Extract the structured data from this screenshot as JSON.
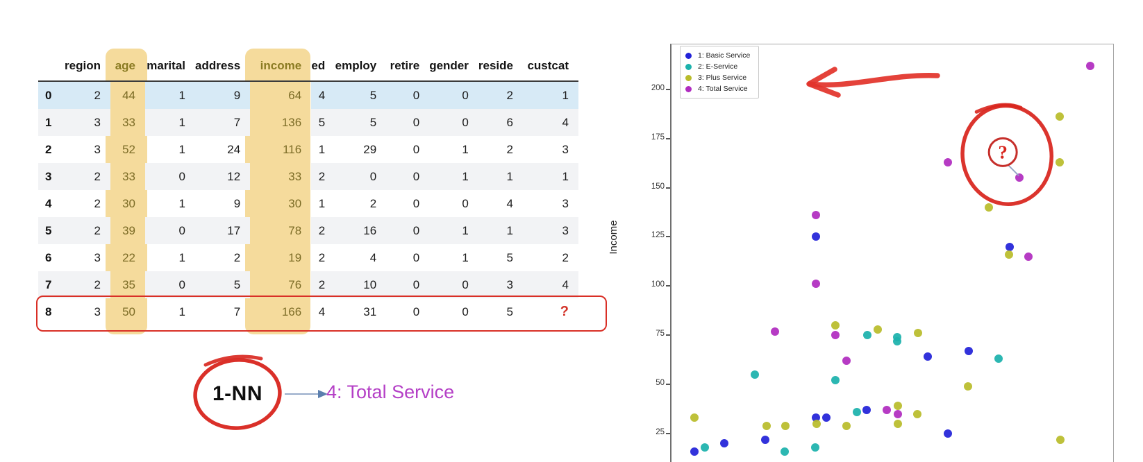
{
  "table": {
    "columns": [
      "region",
      "age",
      "marital",
      "address",
      "income",
      "ed",
      "employ",
      "retire",
      "gender",
      "reside",
      "custcat"
    ],
    "highlighted_columns": [
      "age",
      "income"
    ],
    "highlighted_row": "0",
    "outlined_row": "8",
    "rows": [
      {
        "index": "0",
        "cells": [
          "2",
          "44",
          "1",
          "9",
          "64",
          "4",
          "5",
          "0",
          "0",
          "2",
          "1"
        ]
      },
      {
        "index": "1",
        "cells": [
          "3",
          "33",
          "1",
          "7",
          "136",
          "5",
          "5",
          "0",
          "0",
          "6",
          "4"
        ]
      },
      {
        "index": "2",
        "cells": [
          "3",
          "52",
          "1",
          "24",
          "116",
          "1",
          "29",
          "0",
          "1",
          "2",
          "3"
        ]
      },
      {
        "index": "3",
        "cells": [
          "2",
          "33",
          "0",
          "12",
          "33",
          "2",
          "0",
          "0",
          "1",
          "1",
          "1"
        ]
      },
      {
        "index": "4",
        "cells": [
          "2",
          "30",
          "1",
          "9",
          "30",
          "1",
          "2",
          "0",
          "0",
          "4",
          "3"
        ]
      },
      {
        "index": "5",
        "cells": [
          "2",
          "39",
          "0",
          "17",
          "78",
          "2",
          "16",
          "0",
          "1",
          "1",
          "3"
        ]
      },
      {
        "index": "6",
        "cells": [
          "3",
          "22",
          "1",
          "2",
          "19",
          "2",
          "4",
          "0",
          "1",
          "5",
          "2"
        ]
      },
      {
        "index": "7",
        "cells": [
          "2",
          "35",
          "0",
          "5",
          "76",
          "2",
          "10",
          "0",
          "0",
          "3",
          "4"
        ]
      },
      {
        "index": "8",
        "cells": [
          "3",
          "50",
          "1",
          "7",
          "166",
          "4",
          "31",
          "0",
          "0",
          "5",
          "?"
        ]
      }
    ],
    "colors": {
      "column_highlight": "#f4d894",
      "row_highlight": "#d7eaf6",
      "stripe": "#f2f3f5",
      "outline_red": "#d92f26",
      "question_red": "#d23127"
    }
  },
  "knn_annotation": {
    "label": "1-NN",
    "result": "4: Total Service",
    "colors": {
      "circle_red": "#d8251d",
      "arrow_blue": "#6b8cb8",
      "result_magenta": "#b43fc6"
    }
  },
  "chart_data": {
    "type": "scatter",
    "title": "",
    "xlabel": "",
    "ylabel": "Income",
    "yticks": [
      25,
      50,
      75,
      100,
      125,
      150,
      175,
      200
    ],
    "ylim_visible": [
      12,
      215
    ],
    "grid": false,
    "legend_position": "upper left",
    "x_axis_note": "x axis cropped out of frame; x values given as percent of plot width",
    "series": [
      {
        "name": "1: Basic Service",
        "color": "#2222d8",
        "points": [
          [
            5.2,
            16
          ],
          [
            11.9,
            20
          ],
          [
            21.2,
            22
          ],
          [
            32.7,
            33
          ],
          [
            35.1,
            33
          ],
          [
            44.2,
            37
          ],
          [
            62.6,
            25
          ],
          [
            58.0,
            64
          ],
          [
            67.3,
            67
          ],
          [
            32.7,
            125
          ],
          [
            76.6,
            120
          ]
        ]
      },
      {
        "name": "2: E-Service",
        "color": "#1cb2ac",
        "points": [
          [
            7.5,
            18
          ],
          [
            25.6,
            16
          ],
          [
            32.5,
            18
          ],
          [
            18.9,
            55
          ],
          [
            37.1,
            52
          ],
          [
            42.0,
            36
          ],
          [
            44.3,
            75
          ],
          [
            51.1,
            74
          ],
          [
            51.1,
            72
          ],
          [
            74.1,
            63
          ]
        ]
      },
      {
        "name": "3: Plus Service",
        "color": "#b9bc2b",
        "points": [
          [
            5.2,
            33
          ],
          [
            21.5,
            29
          ],
          [
            25.8,
            29
          ],
          [
            32.9,
            30
          ],
          [
            39.6,
            29
          ],
          [
            51.3,
            30
          ],
          [
            55.7,
            35
          ],
          [
            51.3,
            39
          ],
          [
            37.1,
            80
          ],
          [
            46.7,
            78
          ],
          [
            55.8,
            76
          ],
          [
            67.1,
            49
          ],
          [
            88.1,
            22
          ],
          [
            71.9,
            140
          ],
          [
            76.4,
            116
          ],
          [
            87.9,
            186
          ],
          [
            87.9,
            163
          ]
        ]
      },
      {
        "name": "4: Total Service",
        "color": "#b02cc0",
        "points": [
          [
            23.4,
            77
          ],
          [
            32.7,
            136
          ],
          [
            32.7,
            101
          ],
          [
            37.1,
            75
          ],
          [
            39.6,
            62
          ],
          [
            48.7,
            37
          ],
          [
            51.3,
            35
          ],
          [
            62.6,
            163
          ],
          [
            80.8,
            115
          ],
          [
            94.8,
            212
          ],
          [
            78.8,
            155
          ]
        ]
      }
    ],
    "highlighted_point": {
      "series": "4: Total Service",
      "x_pct": 78.8,
      "income": 155,
      "label": "?"
    },
    "annotation_colors": {
      "red": "#d8251d",
      "badge_border": "#c62f2b",
      "connector": "#93a3c4"
    }
  }
}
